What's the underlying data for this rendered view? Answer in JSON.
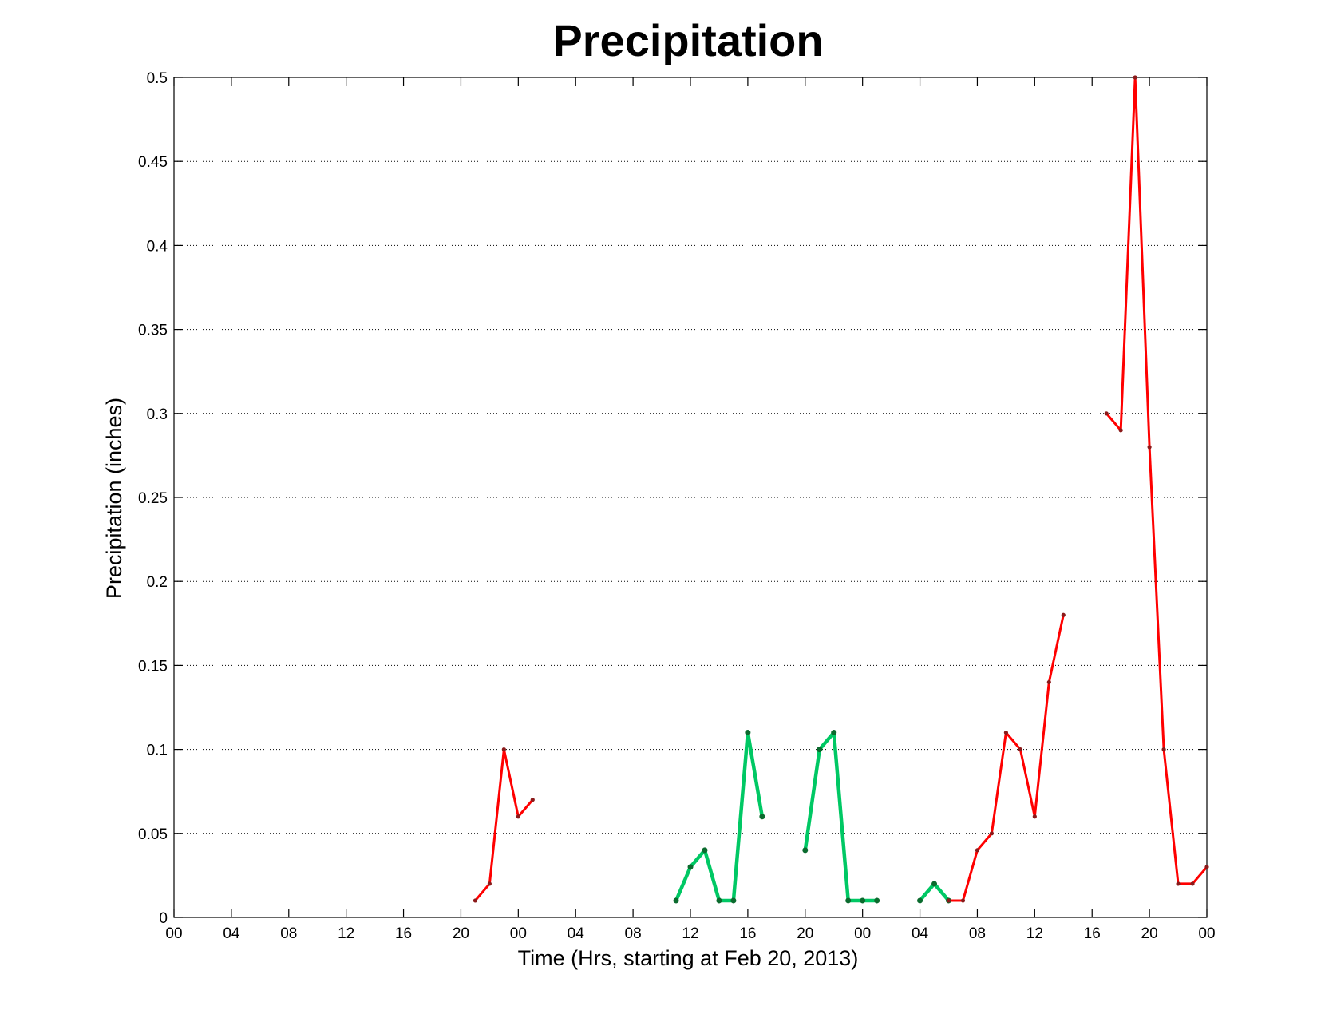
{
  "chart_data": {
    "type": "line",
    "title": "Precipitation",
    "xlabel": "Time (Hrs, starting at Feb 20, 2013)",
    "ylabel": "Precipitation (inches)",
    "x_unit": "hours",
    "xlim": [
      0,
      72
    ],
    "ylim": [
      0,
      0.5
    ],
    "x_ticks": [
      0,
      4,
      8,
      12,
      16,
      20,
      24,
      28,
      32,
      36,
      40,
      44,
      48,
      52,
      56,
      60,
      64,
      68,
      72
    ],
    "x_tick_labels": [
      "00",
      "04",
      "08",
      "12",
      "16",
      "20",
      "00",
      "04",
      "08",
      "12",
      "16",
      "20",
      "00",
      "04",
      "08",
      "12",
      "16",
      "20",
      "00"
    ],
    "y_ticks": [
      0,
      0.05,
      0.1,
      0.15,
      0.2,
      0.25,
      0.3,
      0.35,
      0.4,
      0.45,
      0.5
    ],
    "y_tick_labels": [
      "0",
      "0.05",
      "0.1",
      "0.15",
      "0.2",
      "0.25",
      "0.3",
      "0.35",
      "0.4",
      "0.45",
      "0.5"
    ],
    "grid": "horizontal dotted",
    "marker_color": "#8b1a1a",
    "series": [
      {
        "color": "#ff0000",
        "values": [
          [
            21,
            0.01
          ],
          [
            22,
            0.02
          ],
          [
            23,
            0.1
          ],
          [
            24,
            0.06
          ],
          [
            25,
            0.07
          ]
        ]
      },
      {
        "color": "#00c864",
        "values": [
          [
            35,
            0.01
          ],
          [
            36,
            0.03
          ],
          [
            37,
            0.04
          ],
          [
            38,
            0.01
          ],
          [
            39,
            0.01
          ],
          [
            40,
            0.11
          ],
          [
            41,
            0.06
          ]
        ]
      },
      {
        "color": "#00c864",
        "values": [
          [
            44,
            0.04
          ],
          [
            45,
            0.1
          ],
          [
            46,
            0.11
          ],
          [
            47,
            0.01
          ],
          [
            48,
            0.01
          ],
          [
            49,
            0.01
          ]
        ]
      },
      {
        "color": "#00c864",
        "values": [
          [
            52,
            0.01
          ],
          [
            53,
            0.02
          ],
          [
            54,
            0.01
          ]
        ]
      },
      {
        "color": "#ff0000",
        "values": [
          [
            54,
            0.01
          ],
          [
            55,
            0.01
          ],
          [
            56,
            0.04
          ],
          [
            57,
            0.05
          ],
          [
            58,
            0.11
          ],
          [
            59,
            0.1
          ],
          [
            60,
            0.06
          ],
          [
            61,
            0.14
          ],
          [
            62,
            0.18
          ]
        ]
      },
      {
        "color": "#ff0000",
        "values": [
          [
            65,
            0.3
          ],
          [
            66,
            0.29
          ],
          [
            67,
            0.5
          ],
          [
            68,
            0.28
          ],
          [
            69,
            0.1
          ],
          [
            70,
            0.02
          ],
          [
            71,
            0.02
          ],
          [
            72,
            0.03
          ]
        ]
      }
    ]
  }
}
